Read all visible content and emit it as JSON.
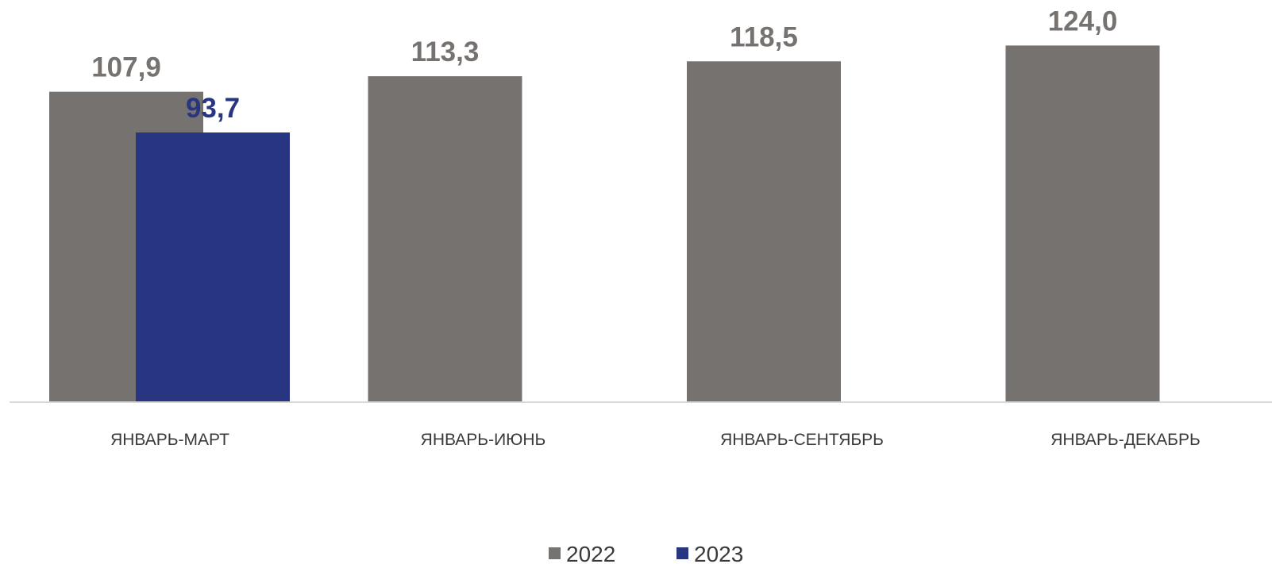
{
  "chart_data": {
    "type": "bar",
    "categories": [
      "ЯНВАРЬ-МАРТ",
      "ЯНВАРЬ-ИЮНЬ",
      "ЯНВАРЬ-СЕНТЯБРЬ",
      "ЯНВАРЬ-ДЕКАБРЬ"
    ],
    "series": [
      {
        "name": "2022",
        "color": "#767270",
        "values": [
          107.9,
          113.3,
          118.5,
          124.0
        ],
        "labels": [
          "107,9",
          "113,3",
          "118,5",
          "124,0"
        ]
      },
      {
        "name": "2023",
        "color": "#283580",
        "values": [
          93.7,
          null,
          null,
          null
        ],
        "labels": [
          "93,7",
          "",
          "",
          ""
        ]
      }
    ],
    "title": "",
    "xlabel": "",
    "ylabel": "",
    "ylim": [
      0,
      124.0
    ],
    "grid": false,
    "legend": "bottom-center",
    "label_colors": {
      "2022": "#767270",
      "2023": "#283580"
    },
    "axis_color": "#d9d9d9"
  }
}
